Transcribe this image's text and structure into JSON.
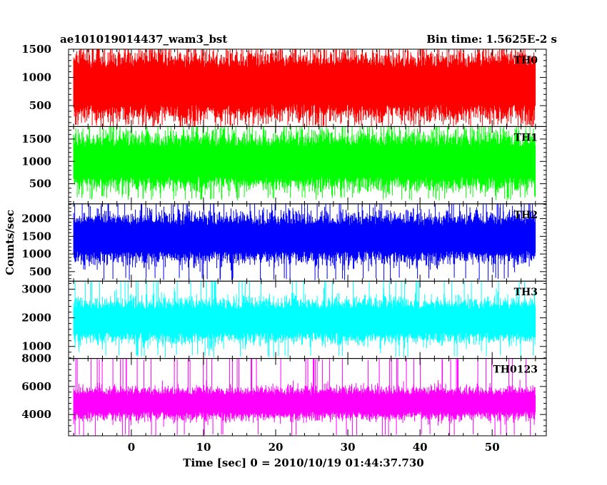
{
  "chart_data": {
    "type": "line",
    "title": "ae101019014437_wam3_bst",
    "subtitle": "Bin time: 1.5625E-2 s",
    "xlabel": "Time [sec] 0 = 2010/10/19 01:44:37.730",
    "ylabel": "Counts/sec",
    "xlim": [
      -8.7,
      57.5
    ],
    "data_x_range": [
      -8,
      56
    ],
    "x_ticks": [
      0,
      10,
      20,
      30,
      40,
      50
    ],
    "x_tick_labels": [
      "0",
      "10",
      "20",
      "30",
      "40",
      "50"
    ],
    "shared_x_axis": true,
    "grid": false,
    "panels": [
      {
        "name": "TH0",
        "color": "#ff0000",
        "ylim": [
          130,
          1500
        ],
        "y_ticks": [
          500,
          1000,
          1500
        ],
        "y_tick_labels": [
          "500",
          "1000",
          "1500"
        ],
        "mean": 850,
        "sigma": 340,
        "typical_min": 170,
        "typical_max": 1500
      },
      {
        "name": "TH1",
        "color": "#00ff00",
        "ylim": [
          50,
          1780
        ],
        "y_ticks": [
          500,
          1000,
          1500
        ],
        "y_tick_labels": [
          "500",
          "1000",
          "1500"
        ],
        "mean": 1000,
        "sigma": 350,
        "typical_min": 200,
        "typical_max": 1780
      },
      {
        "name": "TH2",
        "color": "#0000ff",
        "ylim": [
          230,
          2420
        ],
        "y_ticks": [
          500,
          1000,
          1500,
          2000
        ],
        "y_tick_labels": [
          "500",
          "1000",
          "1500",
          "2000"
        ],
        "mean": 1450,
        "sigma": 380,
        "typical_min": 330,
        "typical_max": 2300
      },
      {
        "name": "TH3",
        "color": "#00ffff",
        "ylim": [
          580,
          3280
        ],
        "y_ticks": [
          1000,
          2000,
          3000
        ],
        "y_tick_labels": [
          "1000",
          "2000",
          "3000"
        ],
        "mean": 1900,
        "sigma": 420,
        "typical_min": 700,
        "typical_max": 3280
      },
      {
        "name": "TH0123",
        "color": "#ff00ff",
        "ylim": [
          2480,
          8000
        ],
        "y_ticks": [
          4000,
          6000,
          8000
        ],
        "y_tick_labels": [
          "4000",
          "6000",
          "8000"
        ],
        "mean": 4800,
        "sigma": 620,
        "typical_min": 2600,
        "typical_max": 7700
      }
    ]
  }
}
